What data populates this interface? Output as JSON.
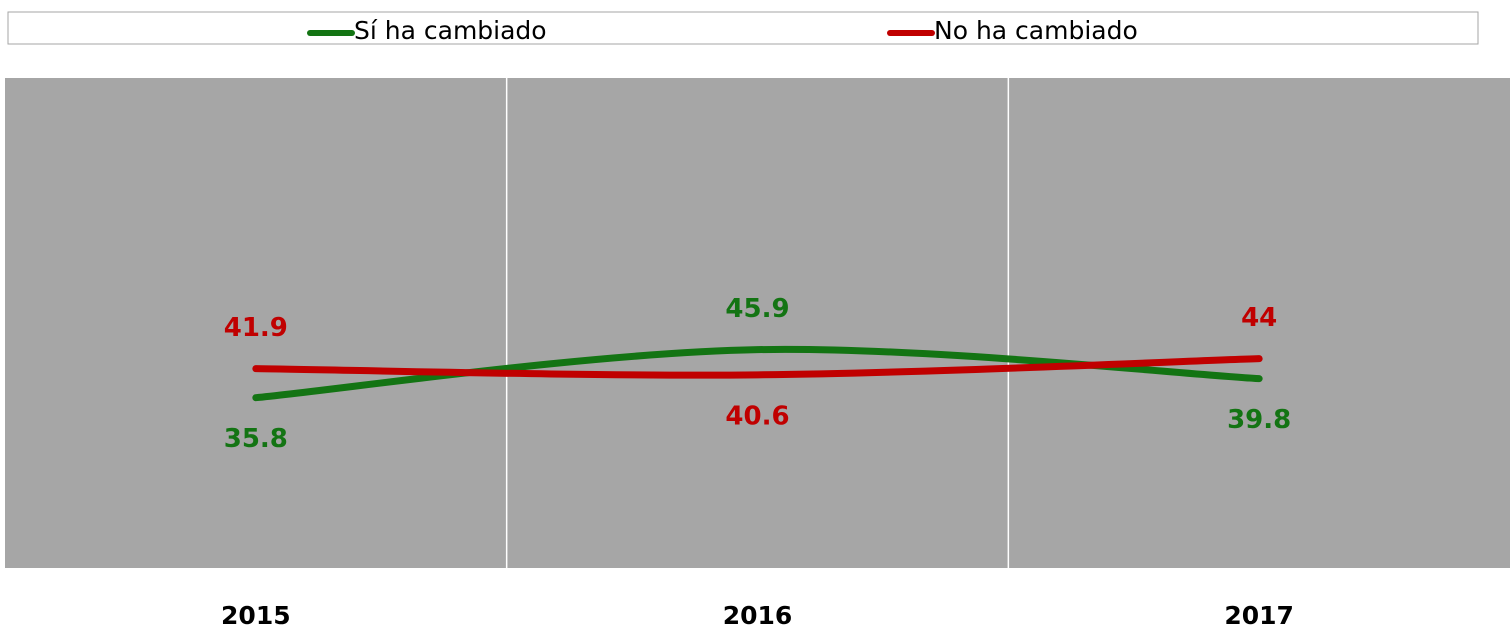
{
  "chart_data": {
    "type": "line",
    "categories": [
      "2015",
      "2016",
      "2017"
    ],
    "series": [
      {
        "name": "Sí ha cambiado",
        "color": "#137413",
        "values": [
          35.8,
          45.9,
          39.8
        ]
      },
      {
        "name": "No ha cambiado",
        "color": "#c00000",
        "values": [
          41.9,
          40.6,
          44.0
        ]
      }
    ],
    "ylim": [
      0,
      103
    ],
    "grid": true,
    "legend": "top",
    "background": "#a6a6a6"
  }
}
